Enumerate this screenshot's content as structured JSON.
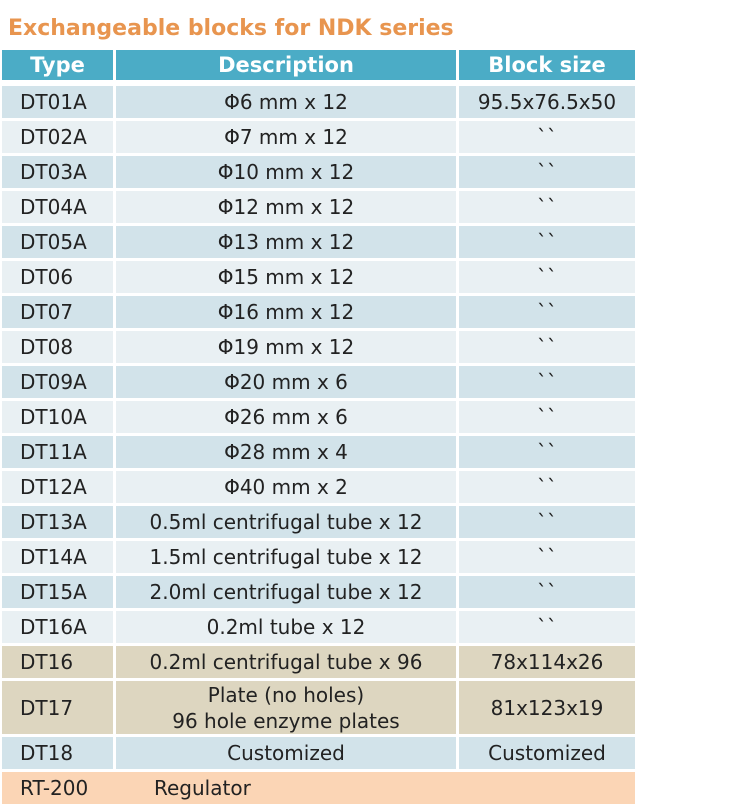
{
  "title": "Exchangeable blocks for NDK series",
  "table": {
    "header": [
      "Type",
      "Description",
      "Block size"
    ],
    "rows": [
      [
        "DT01A",
        "Φ6 mm x 12",
        "95.5x76.5x50"
      ],
      [
        "DT02A",
        "Φ7 mm x 12",
        "``"
      ],
      [
        "DT03A",
        "Φ10 mm x 12",
        "``"
      ],
      [
        "DT04A",
        "Φ12 mm x 12",
        "``"
      ],
      [
        "DT05A",
        "Φ13 mm x 12",
        "``"
      ],
      [
        "DT06",
        "Φ15 mm x 12",
        "``"
      ],
      [
        "DT07",
        "Φ16 mm x 12",
        "``"
      ],
      [
        "DT08",
        "Φ19 mm x 12",
        "``"
      ],
      [
        "DT09A",
        "Φ20 mm x 6",
        "``"
      ],
      [
        "DT10A",
        "Φ26 mm x 6",
        "``"
      ],
      [
        "DT11A",
        "Φ28 mm x 4",
        "``"
      ],
      [
        "DT12A",
        "Φ40 mm x 2",
        "``"
      ],
      [
        "DT13A",
        "0.5ml centrifugal tube x 12",
        "``"
      ],
      [
        "DT14A",
        "1.5ml centrifugal tube x 12",
        "``"
      ],
      [
        "DT15A",
        "2.0ml centrifugal tube x 12",
        "``"
      ],
      [
        "DT16A",
        "0.2ml tube x 12",
        "``"
      ],
      [
        "DT16",
        "0.2ml centrifugal tube x 96",
        "78x114x26"
      ],
      [
        "DT17",
        [
          "Plate (no holes)",
          "96 hole enzyme plates"
        ],
        "81x123x19"
      ],
      [
        "DT18",
        "Customized",
        "Customized"
      ],
      [
        "RT-200",
        "Regulator"
      ]
    ]
  }
}
